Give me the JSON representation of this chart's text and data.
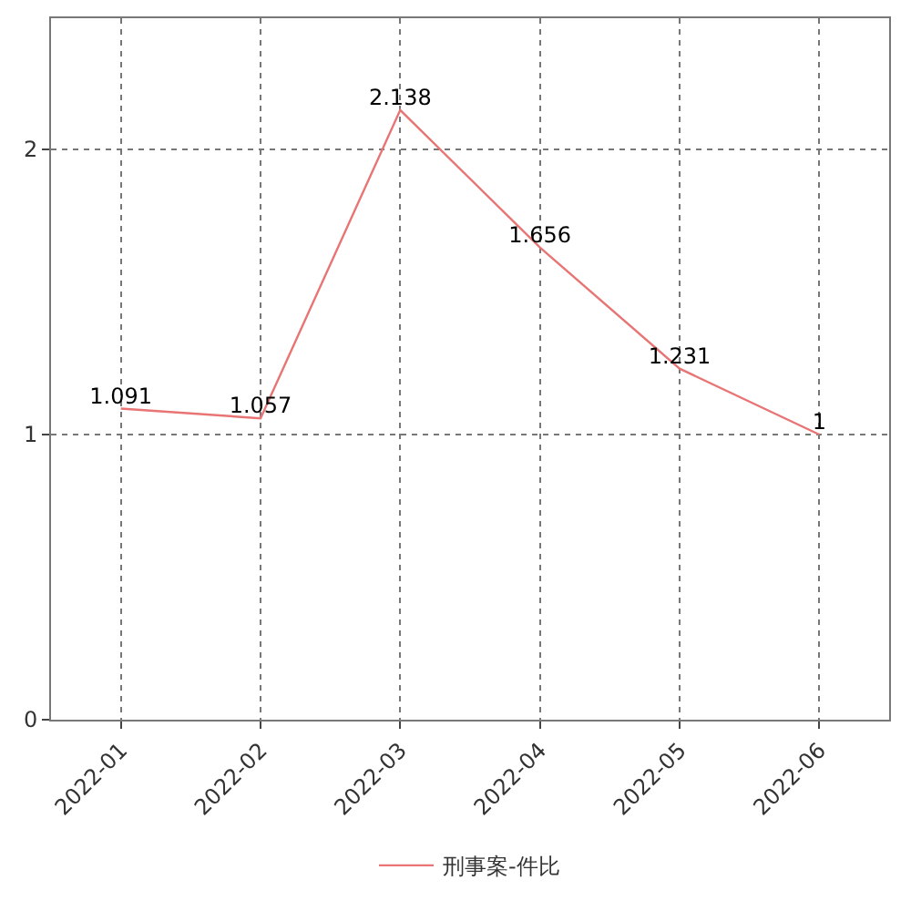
{
  "chart_data": {
    "type": "line",
    "categories": [
      "2022-01",
      "2022-02",
      "2022-03",
      "2022-04",
      "2022-05",
      "2022-06"
    ],
    "series": [
      {
        "name": "刑事案-件比",
        "color": "#e87474",
        "values": [
          1.091,
          1.057,
          2.138,
          1.656,
          1.231,
          1
        ]
      }
    ],
    "ylim": [
      0,
      2.46
    ],
    "yticks": [
      0,
      1,
      2
    ],
    "grid": true,
    "legend": "bottom",
    "data_labels": true,
    "marker": "none",
    "line_style": "solid"
  }
}
